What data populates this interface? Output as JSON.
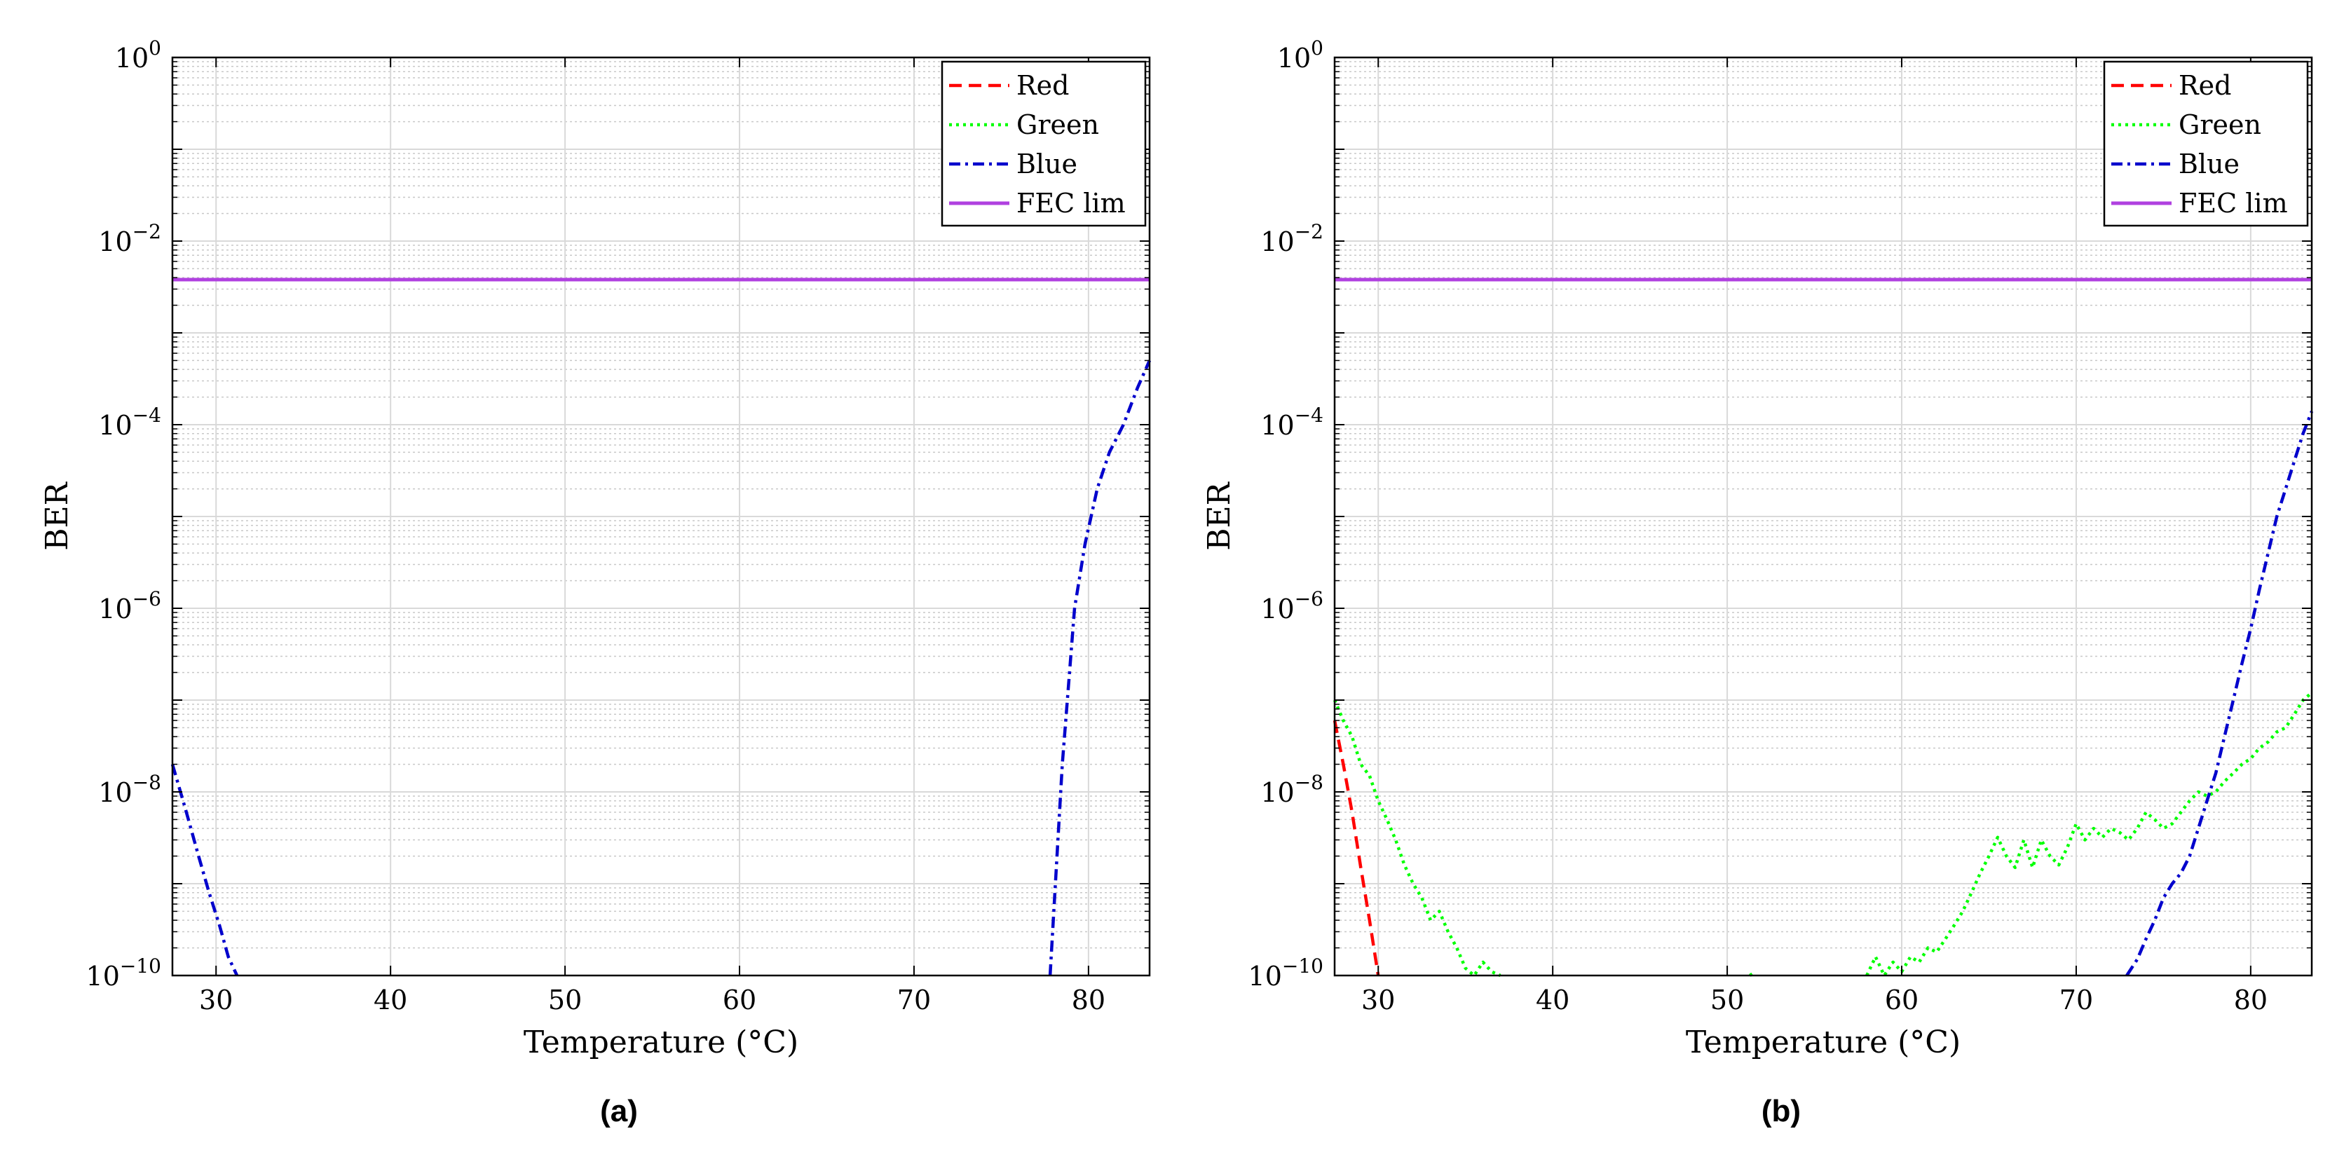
{
  "figure": {
    "panels": [
      "(a)",
      "(b)"
    ]
  },
  "chart_data": [
    {
      "panel_label": "(a)",
      "type": "line",
      "xlabel": "Temperature (°C)",
      "ylabel": "BER",
      "xlim": [
        27.5,
        83.5
      ],
      "ylim": [
        1e-10,
        1
      ],
      "yscale": "log",
      "grid": "on (major and minor)",
      "legend_placement": "top-right",
      "x_ticks": [
        "30",
        "40",
        "50",
        "60",
        "70",
        "80"
      ],
      "x_tick_values": [
        30,
        40,
        50,
        60,
        70,
        80
      ],
      "y_ticks": [
        {
          "base": "10",
          "exp": "0",
          "value": 1
        },
        {
          "base": "10",
          "exp": "−2",
          "value": 0.01
        },
        {
          "base": "10",
          "exp": "−4",
          "value": 0.0001
        },
        {
          "base": "10",
          "exp": "−6",
          "value": 1e-06
        },
        {
          "base": "10",
          "exp": "−8",
          "value": 1e-08
        },
        {
          "base": "10",
          "exp": "−10",
          "value": 1e-10
        }
      ],
      "series": [
        {
          "name": "Red",
          "color": "#ff0000",
          "dash": "dashed",
          "x": [],
          "y": []
        },
        {
          "name": "Green",
          "color": "#00ff00",
          "dash": "dotted",
          "x": [],
          "y": []
        },
        {
          "name": "Blue",
          "color": "#0000cc",
          "dash": "dashdot",
          "segments": [
            {
              "x": [
                27.5,
                28.3,
                29.0,
                29.6,
                30.2,
                30.7,
                31.2
              ],
              "y": [
                2e-08,
                6e-09,
                2e-09,
                8e-10,
                3.5e-10,
                1.6e-10,
                1e-10
              ]
            },
            {
              "x": [
                77.8,
                78.5,
                79.2,
                79.8,
                80.5,
                81.2,
                82.0,
                82.8,
                83.5
              ],
              "y": [
                1e-10,
                2e-08,
                1e-06,
                5e-06,
                2e-05,
                5e-05,
                0.0001,
                0.00025,
                0.0005
              ]
            }
          ]
        },
        {
          "name": "FEC lim",
          "color": "#b040e0",
          "dash": "solid",
          "x": [
            27.5,
            83.5
          ],
          "y": [
            0.0038,
            0.0038
          ]
        }
      ]
    },
    {
      "panel_label": "(b)",
      "type": "line",
      "xlabel": "Temperature (°C)",
      "ylabel": "BER",
      "xlim": [
        27.5,
        83.5
      ],
      "ylim": [
        1e-10,
        1
      ],
      "yscale": "log",
      "grid": "on (major and minor)",
      "legend_placement": "top-right",
      "x_ticks": [
        "30",
        "40",
        "50",
        "60",
        "70",
        "80"
      ],
      "x_tick_values": [
        30,
        40,
        50,
        60,
        70,
        80
      ],
      "y_ticks": [
        {
          "base": "10",
          "exp": "0",
          "value": 1
        },
        {
          "base": "10",
          "exp": "−2",
          "value": 0.01
        },
        {
          "base": "10",
          "exp": "−4",
          "value": 0.0001
        },
        {
          "base": "10",
          "exp": "−6",
          "value": 1e-06
        },
        {
          "base": "10",
          "exp": "−8",
          "value": 1e-08
        },
        {
          "base": "10",
          "exp": "−10",
          "value": 1e-10
        }
      ],
      "series": [
        {
          "name": "Red",
          "color": "#ff0000",
          "dash": "dashed",
          "segments": [
            {
              "x": [
                27.5,
                28.0,
                28.5,
                29.0,
                29.5,
                30.0
              ],
              "y": [
                6e-08,
                2e-08,
                6e-09,
                1.5e-09,
                4e-10,
                1e-10
              ]
            }
          ]
        },
        {
          "name": "Green",
          "color": "#00ff00",
          "dash": "dotted",
          "segments": [
            {
              "x": [
                27.5,
                28.0,
                28.5,
                29.0,
                29.5,
                30.0,
                30.5,
                31.0,
                31.5,
                32.0,
                32.5,
                33.0,
                33.5,
                34.0,
                34.5,
                35.0,
                35.5,
                36.0,
                36.5,
                37.0
              ],
              "y": [
                1e-07,
                6e-08,
                4e-08,
                2e-08,
                1.5e-08,
                8e-09,
                5e-09,
                3e-09,
                1.6e-09,
                1e-09,
                7e-10,
                4e-10,
                5e-10,
                3e-10,
                2e-10,
                1.2e-10,
                1e-10,
                1.4e-10,
                1.1e-10,
                1e-10
              ]
            },
            {
              "x": [
                51.3,
                51.6
              ],
              "y": [
                1e-10,
                1.1e-10
              ]
            },
            {
              "x": [
                58.0,
                58.5,
                59.0,
                59.5,
                60.0,
                60.5,
                61.0,
                61.5,
                62.0,
                62.5,
                63.0,
                63.5,
                64.0,
                64.5,
                65.0,
                65.5,
                66.0,
                66.5,
                67.0,
                67.5,
                68.0,
                68.5,
                69.0,
                69.5,
                70.0,
                70.5,
                71.0,
                71.5,
                72.0,
                72.5,
                73.0,
                73.5,
                74.0,
                74.5,
                75.0,
                75.5,
                76.0,
                76.5,
                77.0,
                77.5,
                78.0,
                78.5,
                79.0,
                79.5,
                80.0,
                80.5,
                81.0,
                81.5,
                82.0,
                82.5,
                83.0,
                83.5
              ],
              "y": [
                1e-10,
                1.6e-10,
                1e-10,
                1.4e-10,
                1.1e-10,
                1.6e-10,
                1.4e-10,
                2e-10,
                1.8e-10,
                2.5e-10,
                3.5e-10,
                5e-10,
                8e-10,
                1.3e-09,
                2e-09,
                3.2e-09,
                2e-09,
                1.5e-09,
                3e-09,
                1.5e-09,
                3e-09,
                2e-09,
                1.6e-09,
                2.5e-09,
                4.5e-09,
                3e-09,
                4e-09,
                3.2e-09,
                4e-09,
                3.6e-09,
                3e-09,
                4e-09,
                6e-09,
                5e-09,
                4e-09,
                4.5e-09,
                6e-09,
                8e-09,
                1e-08,
                9e-09,
                1e-08,
                1.3e-08,
                1.6e-08,
                2e-08,
                2.3e-08,
                3e-08,
                3.5e-08,
                4.5e-08,
                5e-08,
                7e-08,
                1e-07,
                1.2e-07
              ]
            }
          ]
        },
        {
          "name": "Blue",
          "color": "#0000cc",
          "dash": "dashdot",
          "segments": [
            {
              "x": [
                72.9,
                73.5,
                74.0,
                74.5,
                75.0,
                75.5,
                76.0,
                76.5,
                77.0,
                77.5,
                78.0,
                78.5,
                79.0,
                79.5,
                80.0,
                80.5,
                81.0,
                81.5,
                82.0,
                82.5,
                83.0,
                83.5
              ],
              "y": [
                1e-10,
                1.5e-10,
                2.5e-10,
                4e-10,
                7e-10,
                1e-09,
                1.3e-09,
                2e-09,
                4e-09,
                8e-09,
                1.6e-08,
                4e-08,
                1e-07,
                2.5e-07,
                6e-07,
                1.6e-06,
                4e-06,
                1e-05,
                2e-05,
                4e-05,
                8e-05,
                0.00014
              ]
            }
          ]
        },
        {
          "name": "FEC lim",
          "color": "#b040e0",
          "dash": "solid",
          "x": [
            27.5,
            83.5
          ],
          "y": [
            0.0038,
            0.0038
          ]
        }
      ]
    }
  ]
}
